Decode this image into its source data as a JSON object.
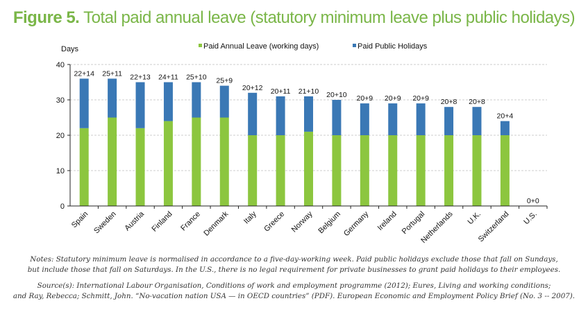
{
  "title": {
    "figure_label": "Figure 5.",
    "text": "Total paid annual leave (statutory minimum leave plus public holidays)"
  },
  "colors": {
    "title": "#7ab648",
    "annual_leave": "#8cc63f",
    "public_holidays": "#3a78b5",
    "grid": "#cccccc",
    "axis": "#222222"
  },
  "chart_data": {
    "type": "bar",
    "stacked": true,
    "title": "Figure 5. Total paid annual leave (statutory minimum leave plus public holidays)",
    "xlabel": "",
    "ylabel": "Days",
    "ylim": [
      0,
      40
    ],
    "yticks": [
      0,
      10,
      20,
      30,
      40
    ],
    "grid": true,
    "legend_position": "top",
    "categories": [
      "Spain",
      "Sweden",
      "Austria",
      "Finland",
      "France",
      "Denmark",
      "Italy",
      "Greece",
      "Norway",
      "Belgium",
      "Germany",
      "Ireland",
      "Portugal",
      "Netherlands",
      "U.K.",
      "Switzerland",
      "U.S."
    ],
    "series": [
      {
        "name": "Paid Annual Leave (working days)",
        "color": "#8cc63f",
        "values": [
          22,
          25,
          22,
          24,
          25,
          25,
          20,
          20,
          21,
          20,
          20,
          20,
          20,
          20,
          20,
          20,
          0
        ]
      },
      {
        "name": "Paid Public Holidays",
        "color": "#3a78b5",
        "values": [
          14,
          11,
          13,
          11,
          10,
          9,
          12,
          11,
          10,
          10,
          9,
          9,
          9,
          8,
          8,
          4,
          0
        ]
      }
    ],
    "data_labels": [
      "22+14",
      "25+11",
      "22+13",
      "24+11",
      "25+10",
      "25+9",
      "20+12",
      "20+11",
      "21+10",
      "20+10",
      "20+9",
      "20+9",
      "20+9",
      "20+8",
      "20+8",
      "20+4",
      "0+0"
    ]
  },
  "notes": {
    "line1": "Notes: Statutory minimum leave is normalised in accordance to a five-day-working week. Paid public holidays exclude those that fall on Sundays,",
    "line2": "but include those that fall on Saturdays. In the U.S., there is no legal requirement for private businesses to grant paid holidays to their employees."
  },
  "sources": {
    "line1": "Source(s): International Labour Organisation, Conditions of work and employment programme (2012); Eures, Living and working conditions;",
    "line2": "and Ray, Rebecca; Schmitt, John. “No-vacation nation USA — in OECD countries” (PDF). European Economic and Employment Policy Brief (No. 3 -- 2007)."
  }
}
